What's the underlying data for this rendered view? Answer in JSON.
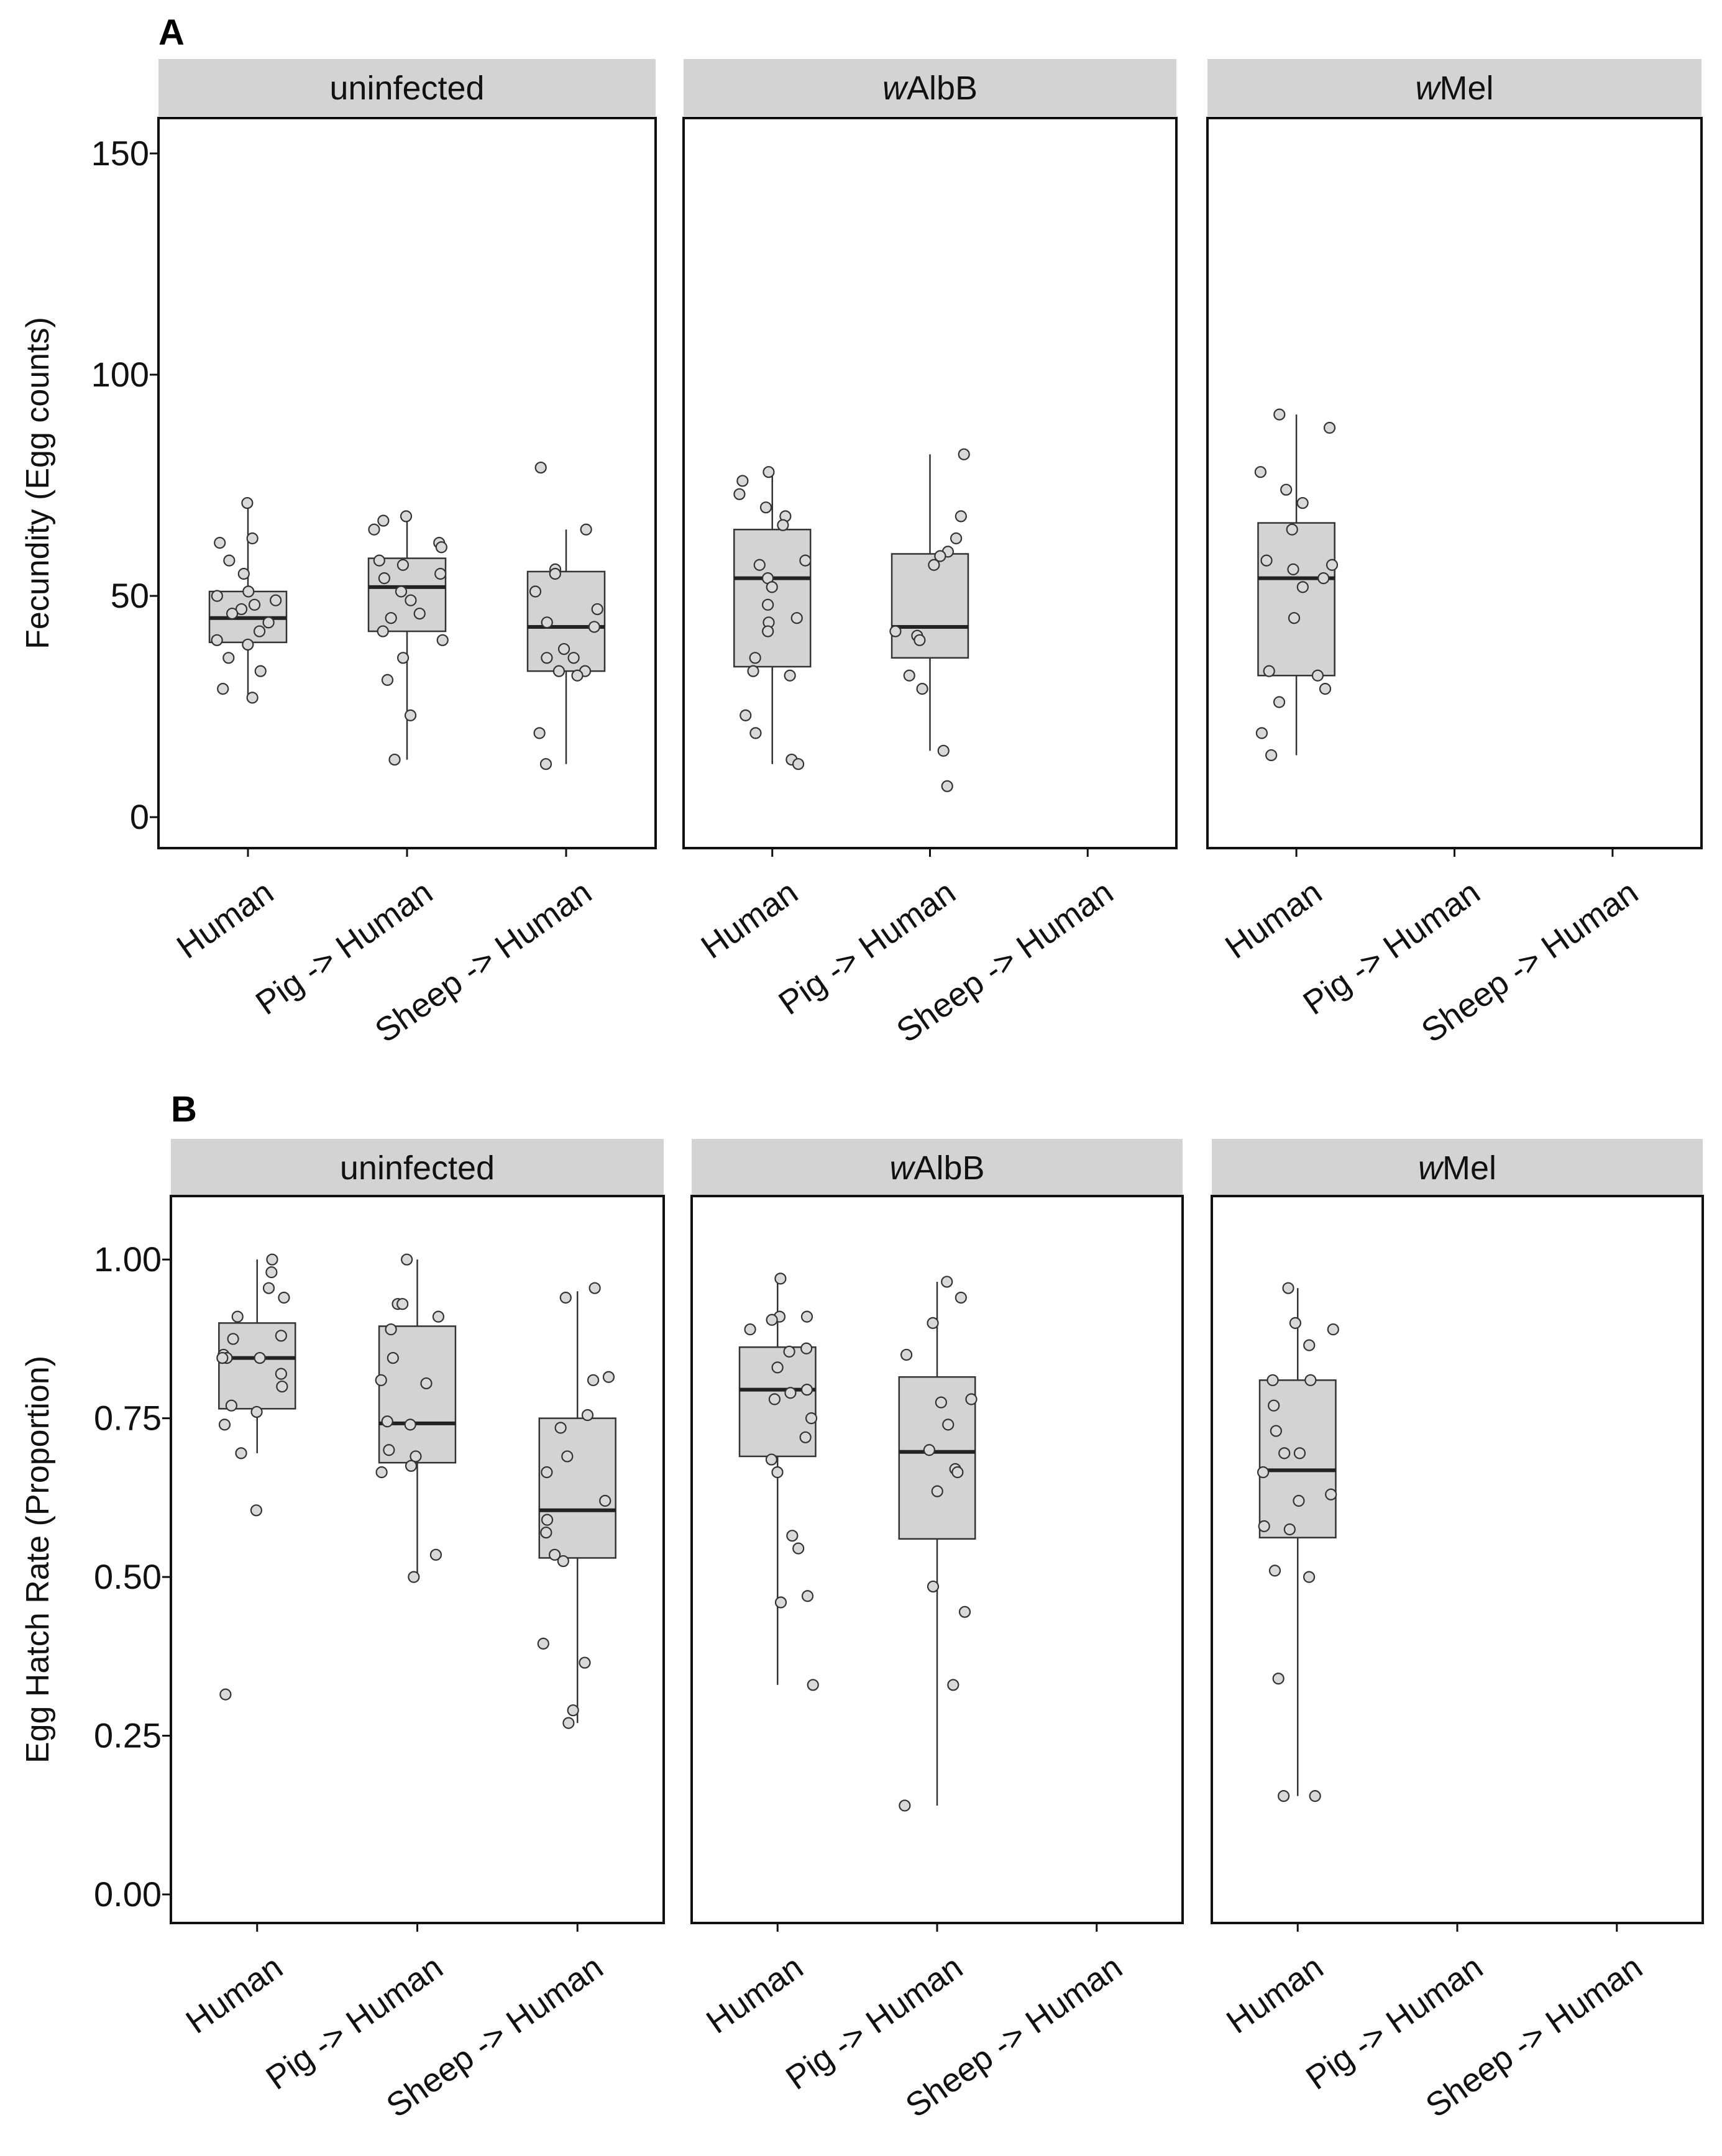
{
  "chart_data": [
    {
      "type": "box",
      "panel_label": "A",
      "ylabel": "Fecundity (Egg counts)",
      "ylim": [
        -7,
        158
      ],
      "yticks": [
        0,
        50,
        100,
        150
      ],
      "ytick_labels": [
        "0",
        "50",
        "100",
        "150"
      ],
      "categories": [
        "Human",
        "Pig -> Human",
        "Sheep -> Human"
      ],
      "facets": [
        {
          "name_prefix": "",
          "name_suffix": "uninfected",
          "groups": [
            {
              "category": "Human",
              "q1": 39.5,
              "median": 45,
              "q3": 51,
              "whisker_low": 27,
              "whisker_high": 71,
              "points": [
                71,
                63,
                62,
                58,
                55,
                51,
                50,
                49,
                48,
                47,
                46,
                44,
                42,
                40,
                39,
                36,
                33,
                29,
                27
              ]
            },
            {
              "category": "Pig -> Human",
              "q1": 42,
              "median": 52,
              "q3": 58.5,
              "whisker_low": 13,
              "whisker_high": 68,
              "points": [
                68,
                67,
                65,
                62,
                61,
                58,
                57,
                55,
                54,
                51,
                49,
                46,
                45,
                42,
                40,
                36,
                31,
                23,
                13
              ]
            },
            {
              "category": "Sheep -> Human",
              "q1": 33,
              "median": 43,
              "q3": 55.5,
              "whisker_low": 12,
              "whisker_high": 65,
              "points": [
                79,
                65,
                56,
                55,
                51,
                47,
                44,
                43,
                38,
                36,
                36,
                33,
                33,
                32,
                19,
                12
              ]
            }
          ]
        },
        {
          "name_prefix": "w",
          "name_suffix": "AlbB",
          "groups": [
            {
              "category": "Human",
              "q1": 34,
              "median": 54,
              "q3": 65,
              "whisker_low": 12,
              "whisker_high": 78,
              "points": [
                78,
                76,
                73,
                70,
                68,
                66,
                58,
                57,
                54,
                52,
                48,
                45,
                44,
                42,
                36,
                33,
                32,
                23,
                19,
                13,
                12
              ]
            },
            {
              "category": "Pig -> Human",
              "q1": 36,
              "median": 43,
              "q3": 59.5,
              "whisker_low": 15,
              "whisker_high": 82,
              "points": [
                82,
                68,
                63,
                60,
                59,
                57,
                42,
                41,
                40,
                32,
                29,
                15,
                7
              ]
            }
          ]
        },
        {
          "name_prefix": "w",
          "name_suffix": "Mel",
          "groups": [
            {
              "category": "Human",
              "q1": 32,
              "median": 54,
              "q3": 66.5,
              "whisker_low": 14,
              "whisker_high": 91,
              "points": [
                91,
                88,
                78,
                74,
                71,
                65,
                58,
                57,
                56,
                54,
                52,
                45,
                33,
                32,
                29,
                26,
                19,
                14
              ]
            }
          ]
        }
      ]
    },
    {
      "type": "box",
      "panel_label": "B",
      "ylabel": "Egg Hatch Rate (Proportion)",
      "ylim": [
        -0.045,
        1.1
      ],
      "yticks": [
        0,
        0.25,
        0.5,
        0.75,
        1.0
      ],
      "ytick_labels": [
        "0.00",
        "0.25",
        "0.50",
        "0.75",
        "1.00"
      ],
      "categories": [
        "Human",
        "Pig -> Human",
        "Sheep -> Human"
      ],
      "facets": [
        {
          "name_prefix": "",
          "name_suffix": "uninfected",
          "groups": [
            {
              "category": "Human",
              "q1": 0.765,
              "median": 0.845,
              "q3": 0.9,
              "whisker_low": 0.695,
              "whisker_high": 1.0,
              "points": [
                1.0,
                0.98,
                0.955,
                0.94,
                0.91,
                0.88,
                0.875,
                0.85,
                0.845,
                0.845,
                0.845,
                0.82,
                0.8,
                0.77,
                0.76,
                0.74,
                0.695,
                0.605,
                0.315
              ]
            },
            {
              "category": "Pig -> Human",
              "q1": 0.68,
              "median": 0.742,
              "q3": 0.895,
              "whisker_low": 0.5,
              "whisker_high": 1.0,
              "points": [
                1.0,
                0.93,
                0.93,
                0.91,
                0.89,
                0.845,
                0.81,
                0.805,
                0.745,
                0.74,
                0.7,
                0.69,
                0.675,
                0.665,
                0.535,
                0.5
              ]
            },
            {
              "category": "Sheep -> Human",
              "q1": 0.53,
              "median": 0.605,
              "q3": 0.75,
              "whisker_low": 0.27,
              "whisker_high": 0.95,
              "points": [
                0.955,
                0.94,
                0.815,
                0.81,
                0.755,
                0.735,
                0.69,
                0.665,
                0.62,
                0.59,
                0.57,
                0.535,
                0.525,
                0.395,
                0.365,
                0.29,
                0.27
              ]
            }
          ]
        },
        {
          "name_prefix": "w",
          "name_suffix": "AlbB",
          "groups": [
            {
              "category": "Human",
              "q1": 0.69,
              "median": 0.795,
              "q3": 0.862,
              "whisker_low": 0.33,
              "whisker_high": 0.97,
              "points": [
                0.97,
                0.91,
                0.91,
                0.905,
                0.89,
                0.86,
                0.855,
                0.83,
                0.795,
                0.79,
                0.78,
                0.75,
                0.72,
                0.685,
                0.665,
                0.565,
                0.545,
                0.47,
                0.46,
                0.33
              ]
            },
            {
              "category": "Pig -> Human",
              "q1": 0.56,
              "median": 0.697,
              "q3": 0.815,
              "whisker_low": 0.14,
              "whisker_high": 0.965,
              "points": [
                0.965,
                0.94,
                0.9,
                0.85,
                0.78,
                0.775,
                0.74,
                0.7,
                0.67,
                0.665,
                0.635,
                0.485,
                0.445,
                0.33,
                0.14
              ]
            }
          ]
        },
        {
          "name_prefix": "w",
          "name_suffix": "Mel",
          "groups": [
            {
              "category": "Human",
              "q1": 0.562,
              "median": 0.668,
              "q3": 0.81,
              "whisker_low": 0.155,
              "whisker_high": 0.955,
              "points": [
                0.955,
                0.9,
                0.89,
                0.865,
                0.81,
                0.81,
                0.77,
                0.73,
                0.695,
                0.695,
                0.665,
                0.63,
                0.62,
                0.58,
                0.575,
                0.51,
                0.5,
                0.34,
                0.155,
                0.155
              ]
            }
          ]
        }
      ]
    }
  ]
}
